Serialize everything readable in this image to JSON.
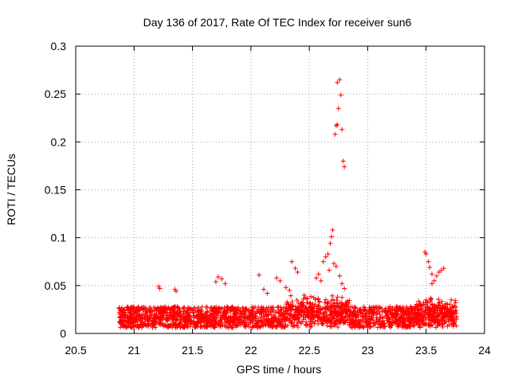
{
  "chart_data": {
    "type": "scatter",
    "title": "Day 136 of 2017, Rate Of TEC Index for receiver sun6",
    "xlabel": "GPS time / hours",
    "ylabel": "ROTI / TECUs",
    "xlim": [
      20.5,
      24
    ],
    "ylim": [
      0,
      0.3
    ],
    "xticks": [
      "20.5",
      "21",
      "21.5",
      "22",
      "22.5",
      "23",
      "23.5",
      "24"
    ],
    "yticks": [
      "0",
      "0.05",
      "0.1",
      "0.15",
      "0.2",
      "0.25",
      "0.3"
    ],
    "grid": true,
    "marker": "+",
    "color": "#ff0000",
    "series": [
      {
        "name": "ROTI",
        "points": [
          [
            22.74,
            0.262
          ],
          [
            22.76,
            0.265
          ],
          [
            22.77,
            0.249
          ],
          [
            22.75,
            0.235
          ],
          [
            22.73,
            0.217
          ],
          [
            22.74,
            0.218
          ],
          [
            22.78,
            0.213
          ],
          [
            22.72,
            0.208
          ],
          [
            22.79,
            0.18
          ],
          [
            22.8,
            0.174
          ],
          [
            22.7,
            0.108
          ],
          [
            22.69,
            0.101
          ],
          [
            22.68,
            0.094
          ],
          [
            22.66,
            0.083
          ],
          [
            22.64,
            0.08
          ],
          [
            22.71,
            0.073
          ],
          [
            22.73,
            0.07
          ],
          [
            22.62,
            0.075
          ],
          [
            22.56,
            0.058
          ],
          [
            22.58,
            0.062
          ],
          [
            22.6,
            0.055
          ],
          [
            22.67,
            0.066
          ],
          [
            22.76,
            0.06
          ],
          [
            22.78,
            0.052
          ],
          [
            22.8,
            0.047
          ],
          [
            22.35,
            0.075
          ],
          [
            22.38,
            0.068
          ],
          [
            22.4,
            0.064
          ],
          [
            22.22,
            0.058
          ],
          [
            22.25,
            0.055
          ],
          [
            22.3,
            0.048
          ],
          [
            22.33,
            0.045
          ],
          [
            22.07,
            0.061
          ],
          [
            22.11,
            0.046
          ],
          [
            22.14,
            0.042
          ],
          [
            21.72,
            0.059
          ],
          [
            21.75,
            0.057
          ],
          [
            21.7,
            0.054
          ],
          [
            21.78,
            0.052
          ],
          [
            21.21,
            0.049
          ],
          [
            21.22,
            0.047
          ],
          [
            21.35,
            0.046
          ],
          [
            21.36,
            0.044
          ],
          [
            23.49,
            0.085
          ],
          [
            23.5,
            0.083
          ],
          [
            23.52,
            0.075
          ],
          [
            23.53,
            0.069
          ],
          [
            23.55,
            0.062
          ],
          [
            23.57,
            0.055
          ],
          [
            23.55,
            0.052
          ],
          [
            23.61,
            0.064
          ],
          [
            23.63,
            0.066
          ],
          [
            23.65,
            0.068
          ],
          [
            23.59,
            0.06
          ]
        ]
      }
    ]
  }
}
